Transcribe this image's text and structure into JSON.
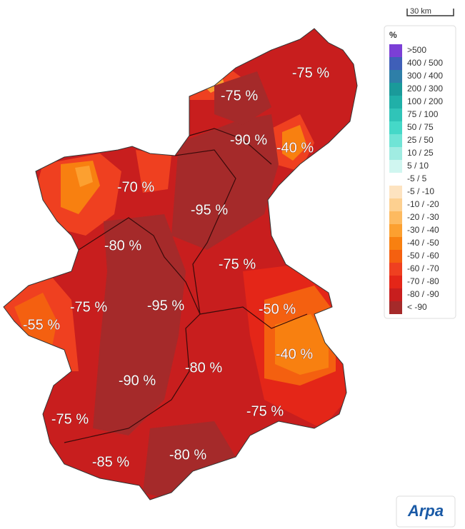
{
  "scale_bar": "30 km",
  "legend": {
    "title": "%",
    "items": [
      {
        "label": ">500",
        "color": "#7b3fd6"
      },
      {
        "label": "400 / 500",
        "color": "#3f5fb8"
      },
      {
        "label": "300 / 400",
        "color": "#2e7fa8"
      },
      {
        "label": "200 / 300",
        "color": "#1a9a9a"
      },
      {
        "label": "100 / 200",
        "color": "#20b0a8"
      },
      {
        "label": "75 / 100",
        "color": "#30c4b8"
      },
      {
        "label": "50 / 75",
        "color": "#45d8c8"
      },
      {
        "label": "25 / 50",
        "color": "#70e4d6"
      },
      {
        "label": "10 / 25",
        "color": "#a0ece2"
      },
      {
        "label": "5 / 10",
        "color": "#d0f6f0"
      },
      {
        "label": "-5 / 5",
        "color": "#ffffff"
      },
      {
        "label": "-5 / -10",
        "color": "#fde3c0"
      },
      {
        "label": "-10 / -20",
        "color": "#fdd090"
      },
      {
        "label": "-20 / -30",
        "color": "#fdba60"
      },
      {
        "label": "-30 / -40",
        "color": "#fca030"
      },
      {
        "label": "-40 / -50",
        "color": "#f88010"
      },
      {
        "label": "-50 / -60",
        "color": "#f46010"
      },
      {
        "label": "-60 / -70",
        "color": "#ef4020"
      },
      {
        "label": "-70 / -80",
        "color": "#e42618"
      },
      {
        "label": "-80 / -90",
        "color": "#c81e1e"
      },
      {
        "label": "< -90",
        "color": "#a52a2a"
      }
    ]
  },
  "map_labels": [
    "-75 %",
    "-75 %",
    "-90 %",
    "-40 %",
    "-70 %",
    "-95 %",
    "-80 %",
    "-75 %",
    "-75 %",
    "-95 %",
    "-50 %",
    "-55 %",
    "-40 %",
    "-80 %",
    "-90 %",
    "-75 %",
    "-75 %",
    "-85 %",
    "-80 %"
  ],
  "logo": "Arpa"
}
